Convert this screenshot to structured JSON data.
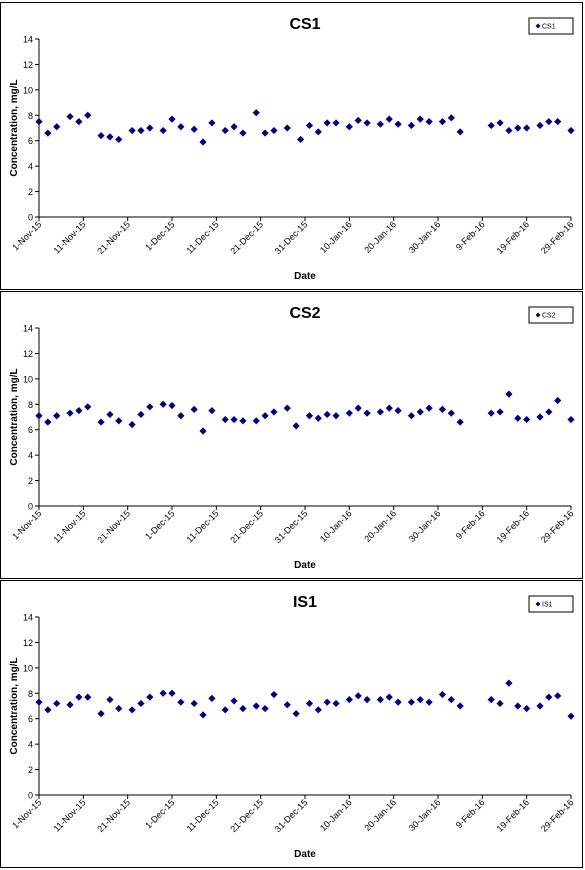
{
  "chart_data": [
    {
      "type": "scatter",
      "title": "CS1",
      "xlabel": "Date",
      "ylabel": "Concentration, mg/L",
      "ylim": [
        0,
        14
      ],
      "yticks": [
        0,
        2,
        4,
        6,
        8,
        10,
        12,
        14
      ],
      "xlim": [
        "2015-11-01",
        "2016-02-29"
      ],
      "xticks": [
        "1-Nov-15",
        "11-Nov-15",
        "21-Nov-15",
        "1-Dec-15",
        "11-Dec-15",
        "21-Dec-15",
        "31-Dec-15",
        "10-Jan-16",
        "20-Jan-16",
        "30-Jan-16",
        "9-Feb-16",
        "19-Feb-16",
        "29-Feb-16"
      ],
      "legend_position": "top-right",
      "series": [
        {
          "name": "CS1",
          "color": "#000080",
          "marker": "diamond",
          "x": [
            "2015-11-01",
            "2015-11-03",
            "2015-11-05",
            "2015-11-08",
            "2015-11-10",
            "2015-11-12",
            "2015-11-15",
            "2015-11-17",
            "2015-11-19",
            "2015-11-22",
            "2015-11-24",
            "2015-11-26",
            "2015-11-29",
            "2015-12-01",
            "2015-12-03",
            "2015-12-06",
            "2015-12-08",
            "2015-12-10",
            "2015-12-13",
            "2015-12-15",
            "2015-12-17",
            "2015-12-20",
            "2015-12-22",
            "2015-12-24",
            "2015-12-27",
            "2015-12-30",
            "2016-01-01",
            "2016-01-03",
            "2016-01-05",
            "2016-01-07",
            "2016-01-10",
            "2016-01-12",
            "2016-01-14",
            "2016-01-17",
            "2016-01-19",
            "2016-01-21",
            "2016-01-24",
            "2016-01-26",
            "2016-01-28",
            "2016-01-31",
            "2016-02-02",
            "2016-02-04",
            "2016-02-11",
            "2016-02-13",
            "2016-02-15",
            "2016-02-17",
            "2016-02-19",
            "2016-02-22",
            "2016-02-24",
            "2016-02-26",
            "2016-02-29"
          ],
          "y": [
            7.5,
            6.6,
            7.1,
            7.9,
            7.5,
            8.0,
            6.4,
            6.3,
            6.1,
            6.8,
            6.8,
            7.0,
            6.8,
            7.7,
            7.1,
            6.9,
            5.9,
            7.4,
            6.8,
            7.1,
            6.6,
            8.2,
            6.6,
            6.8,
            7.0,
            6.1,
            7.2,
            6.7,
            7.4,
            7.4,
            7.1,
            7.6,
            7.4,
            7.3,
            7.7,
            7.3,
            7.2,
            7.7,
            7.5,
            7.5,
            7.8,
            6.7,
            7.2,
            7.4,
            6.8,
            7.0,
            7.0,
            7.2,
            7.5,
            7.5,
            6.8
          ]
        }
      ]
    },
    {
      "type": "scatter",
      "title": "CS2",
      "xlabel": "Date",
      "ylabel": "Concentration, mg/L",
      "ylim": [
        0,
        14
      ],
      "yticks": [
        0,
        2,
        4,
        6,
        8,
        10,
        12,
        14
      ],
      "xlim": [
        "2015-11-01",
        "2016-02-29"
      ],
      "xticks": [
        "1-Nov-15",
        "11-Nov-15",
        "21-Nov-15",
        "1-Dec-15",
        "11-Dec-15",
        "21-Dec-15",
        "31-Dec-15",
        "10-Jan-16",
        "20-Jan-16",
        "30-Jan-16",
        "9-Feb-16",
        "19-Feb-16",
        "29-Feb-16"
      ],
      "legend_position": "top-right",
      "series": [
        {
          "name": "CS2",
          "color": "#000080",
          "marker": "diamond",
          "x": [
            "2015-11-01",
            "2015-11-03",
            "2015-11-05",
            "2015-11-08",
            "2015-11-10",
            "2015-11-12",
            "2015-11-15",
            "2015-11-17",
            "2015-11-19",
            "2015-11-22",
            "2015-11-24",
            "2015-11-26",
            "2015-11-29",
            "2015-12-01",
            "2015-12-03",
            "2015-12-06",
            "2015-12-08",
            "2015-12-10",
            "2015-12-13",
            "2015-12-15",
            "2015-12-17",
            "2015-12-20",
            "2015-12-22",
            "2015-12-24",
            "2015-12-27",
            "2015-12-29",
            "2016-01-01",
            "2016-01-03",
            "2016-01-05",
            "2016-01-07",
            "2016-01-10",
            "2016-01-12",
            "2016-01-14",
            "2016-01-17",
            "2016-01-19",
            "2016-01-21",
            "2016-01-24",
            "2016-01-26",
            "2016-01-28",
            "2016-01-31",
            "2016-02-02",
            "2016-02-04",
            "2016-02-11",
            "2016-02-13",
            "2016-02-15",
            "2016-02-17",
            "2016-02-19",
            "2016-02-22",
            "2016-02-24",
            "2016-02-26",
            "2016-02-29"
          ],
          "y": [
            7.1,
            6.6,
            7.1,
            7.3,
            7.5,
            7.8,
            6.6,
            7.2,
            6.7,
            6.4,
            7.2,
            7.8,
            8.0,
            7.9,
            7.1,
            7.6,
            5.9,
            7.5,
            6.8,
            6.8,
            6.7,
            6.7,
            7.1,
            7.4,
            7.7,
            6.3,
            7.1,
            6.9,
            7.2,
            7.1,
            7.3,
            7.7,
            7.3,
            7.4,
            7.7,
            7.5,
            7.1,
            7.4,
            7.7,
            7.6,
            7.3,
            6.6,
            7.3,
            7.4,
            8.8,
            6.9,
            6.8,
            7.0,
            7.4,
            8.3,
            6.8
          ]
        }
      ]
    },
    {
      "type": "scatter",
      "title": "IS1",
      "xlabel": "Date",
      "ylabel": "Concentration, mg/L",
      "ylim": [
        0,
        14
      ],
      "yticks": [
        0,
        2,
        4,
        6,
        8,
        10,
        12,
        14
      ],
      "xlim": [
        "2015-11-01",
        "2016-02-29"
      ],
      "xticks": [
        "1-Nov-15",
        "11-Nov-15",
        "21-Nov-15",
        "1-Dec-15",
        "11-Dec-15",
        "21-Dec-15",
        "31-Dec-15",
        "10-Jan-16",
        "20-Jan-16",
        "30-Jan-16",
        "9-Feb-16",
        "19-Feb-16",
        "29-Feb-16"
      ],
      "legend_position": "top-right",
      "series": [
        {
          "name": "IS1",
          "color": "#000080",
          "marker": "diamond",
          "x": [
            "2015-11-01",
            "2015-11-03",
            "2015-11-05",
            "2015-11-08",
            "2015-11-10",
            "2015-11-12",
            "2015-11-15",
            "2015-11-17",
            "2015-11-19",
            "2015-11-22",
            "2015-11-24",
            "2015-11-26",
            "2015-11-29",
            "2015-12-01",
            "2015-12-03",
            "2015-12-06",
            "2015-12-08",
            "2015-12-10",
            "2015-12-13",
            "2015-12-15",
            "2015-12-17",
            "2015-12-20",
            "2015-12-22",
            "2015-12-24",
            "2015-12-27",
            "2015-12-29",
            "2016-01-01",
            "2016-01-03",
            "2016-01-05",
            "2016-01-07",
            "2016-01-10",
            "2016-01-12",
            "2016-01-14",
            "2016-01-17",
            "2016-01-19",
            "2016-01-21",
            "2016-01-24",
            "2016-01-26",
            "2016-01-28",
            "2016-01-31",
            "2016-02-02",
            "2016-02-04",
            "2016-02-11",
            "2016-02-13",
            "2016-02-15",
            "2016-02-17",
            "2016-02-19",
            "2016-02-22",
            "2016-02-24",
            "2016-02-26",
            "2016-02-29"
          ],
          "y": [
            7.3,
            6.7,
            7.2,
            7.1,
            7.7,
            7.7,
            6.4,
            7.5,
            6.8,
            6.7,
            7.2,
            7.7,
            8.0,
            8.0,
            7.3,
            7.2,
            6.3,
            7.6,
            6.7,
            7.4,
            6.8,
            7.0,
            6.8,
            7.9,
            7.1,
            6.4,
            7.2,
            6.7,
            7.3,
            7.2,
            7.5,
            7.8,
            7.5,
            7.5,
            7.7,
            7.3,
            7.3,
            7.5,
            7.3,
            7.9,
            7.5,
            7.0,
            7.5,
            7.2,
            8.8,
            7.0,
            6.8,
            7.0,
            7.7,
            7.8,
            6.2
          ]
        }
      ]
    }
  ]
}
